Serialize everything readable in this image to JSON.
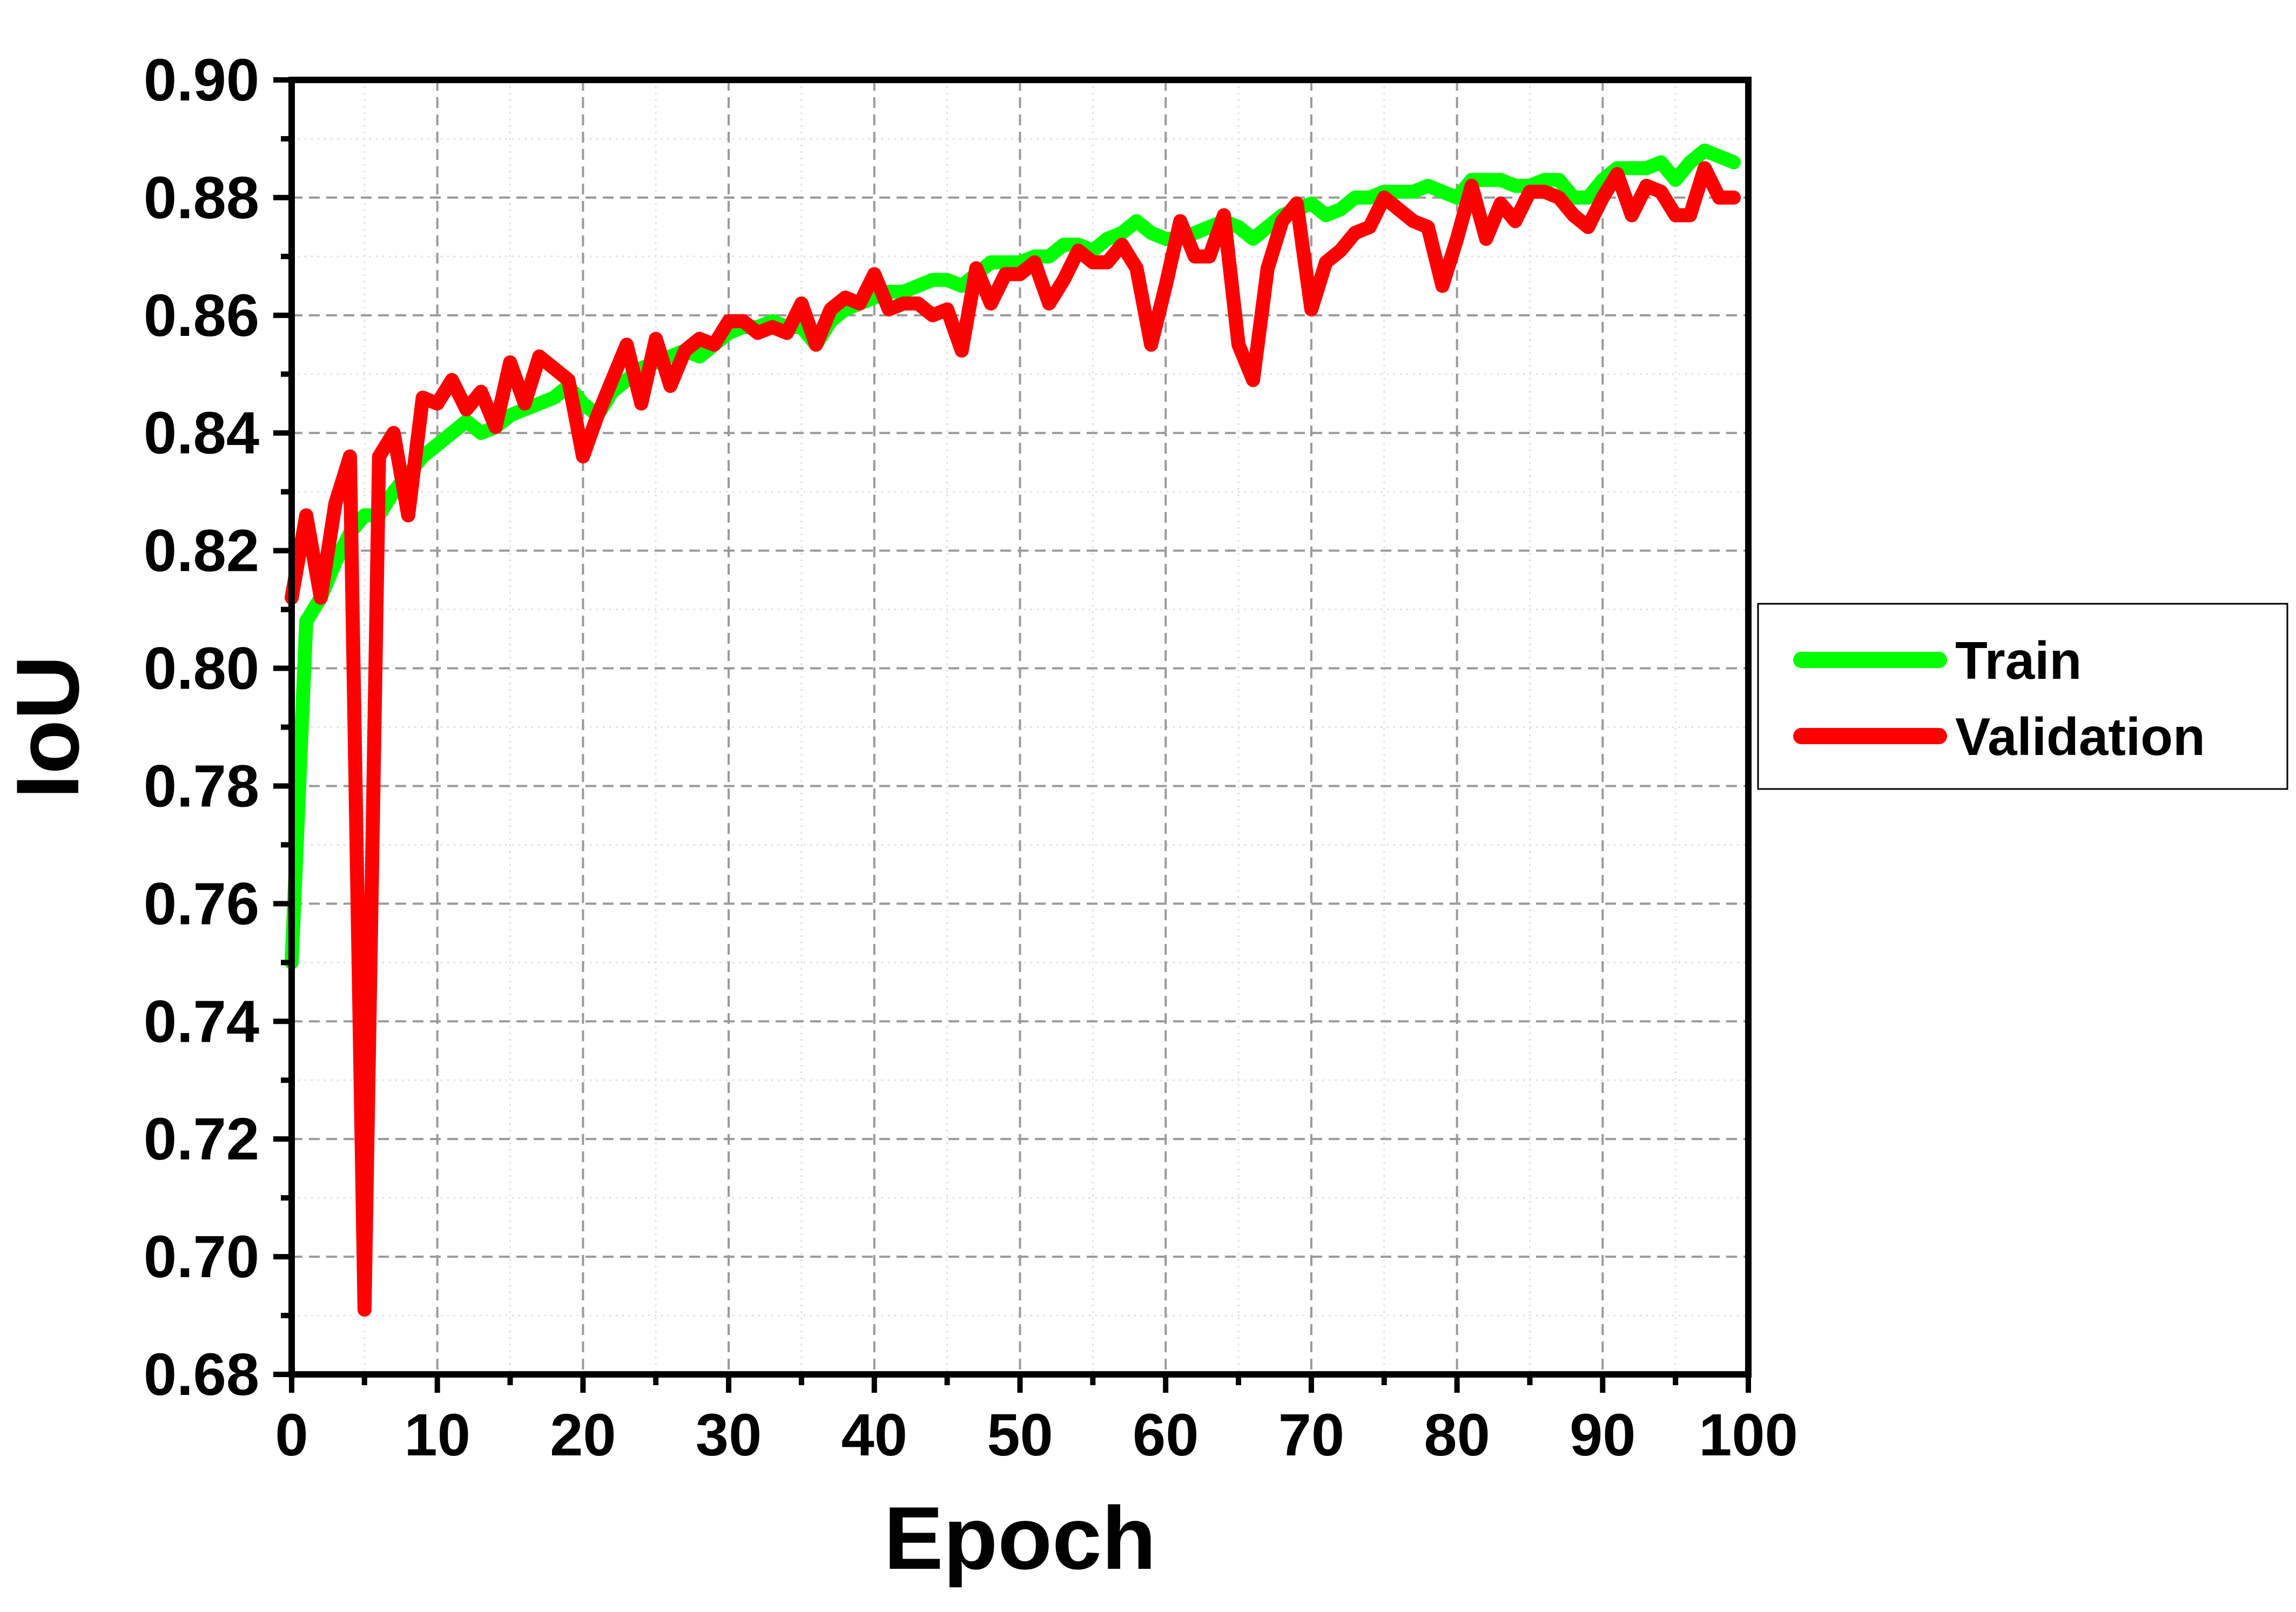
{
  "chart_data": {
    "type": "line",
    "xlabel": "Epoch",
    "ylabel": "IoU",
    "xlim": [
      0,
      100
    ],
    "ylim": [
      0.68,
      0.9
    ],
    "x_ticks": [
      0,
      10,
      20,
      30,
      40,
      50,
      60,
      70,
      80,
      90,
      100
    ],
    "x_tick_labels": [
      "0",
      "10",
      "20",
      "30",
      "40",
      "50",
      "60",
      "70",
      "80",
      "90",
      "100"
    ],
    "y_ticks": [
      0.68,
      0.7,
      0.72,
      0.74,
      0.76,
      0.78,
      0.8,
      0.82,
      0.84,
      0.86,
      0.88,
      0.9
    ],
    "y_tick_labels": [
      "0.68",
      "0.70",
      "0.72",
      "0.74",
      "0.76",
      "0.78",
      "0.80",
      "0.82",
      "0.84",
      "0.86",
      "0.88",
      "0.90"
    ],
    "grid": true,
    "legend_position": "right, outside plot area",
    "series": [
      {
        "name": "Train",
        "color": "#00ff00",
        "x": [
          0,
          1,
          2,
          3,
          4,
          5,
          6,
          7,
          8,
          9,
          10,
          11,
          12,
          13,
          14,
          15,
          16,
          17,
          18,
          19,
          20,
          21,
          22,
          23,
          24,
          25,
          26,
          27,
          28,
          29,
          30,
          31,
          32,
          33,
          34,
          35,
          36,
          37,
          38,
          39,
          40,
          41,
          42,
          43,
          44,
          45,
          46,
          47,
          48,
          49,
          50,
          51,
          52,
          53,
          54,
          55,
          56,
          57,
          58,
          59,
          60,
          61,
          62,
          63,
          64,
          65,
          66,
          67,
          68,
          69,
          70,
          71,
          72,
          73,
          74,
          75,
          76,
          77,
          78,
          79,
          80,
          81,
          82,
          83,
          84,
          85,
          86,
          87,
          88,
          89,
          90,
          91,
          92,
          93,
          94,
          95,
          96,
          97,
          98,
          99
        ],
        "values": [
          0.75,
          0.808,
          0.812,
          0.818,
          0.823,
          0.826,
          0.826,
          0.83,
          0.833,
          0.836,
          0.838,
          0.84,
          0.842,
          0.84,
          0.841,
          0.843,
          0.844,
          0.845,
          0.846,
          0.848,
          0.845,
          0.843,
          0.847,
          0.849,
          0.851,
          0.852,
          0.853,
          0.854,
          0.853,
          0.855,
          0.857,
          0.858,
          0.858,
          0.859,
          0.858,
          0.858,
          0.855,
          0.859,
          0.861,
          0.862,
          0.863,
          0.864,
          0.864,
          0.865,
          0.866,
          0.866,
          0.865,
          0.867,
          0.869,
          0.869,
          0.869,
          0.87,
          0.87,
          0.872,
          0.872,
          0.871,
          0.873,
          0.874,
          0.876,
          0.874,
          0.873,
          0.873,
          0.874,
          0.875,
          0.876,
          0.875,
          0.873,
          0.875,
          0.877,
          0.878,
          0.879,
          0.877,
          0.878,
          0.88,
          0.88,
          0.881,
          0.881,
          0.881,
          0.882,
          0.881,
          0.88,
          0.883,
          0.883,
          0.883,
          0.882,
          0.882,
          0.883,
          0.883,
          0.88,
          0.88,
          0.883,
          0.885,
          0.885,
          0.885,
          0.886,
          0.883,
          0.886,
          0.888,
          0.887,
          0.886
        ]
      },
      {
        "name": "Validation",
        "color": "#ff0000",
        "x": [
          0,
          1,
          2,
          3,
          4,
          5,
          6,
          7,
          8,
          9,
          10,
          11,
          12,
          13,
          14,
          15,
          16,
          17,
          18,
          19,
          20,
          21,
          22,
          23,
          24,
          25,
          26,
          27,
          28,
          29,
          30,
          31,
          32,
          33,
          34,
          35,
          36,
          37,
          38,
          39,
          40,
          41,
          42,
          43,
          44,
          45,
          46,
          47,
          48,
          49,
          50,
          51,
          52,
          53,
          54,
          55,
          56,
          57,
          58,
          59,
          60,
          61,
          62,
          63,
          64,
          65,
          66,
          67,
          68,
          69,
          70,
          71,
          72,
          73,
          74,
          75,
          76,
          77,
          78,
          79,
          80,
          81,
          82,
          83,
          84,
          85,
          86,
          87,
          88,
          89,
          90,
          91,
          92,
          93,
          94,
          95,
          96,
          97,
          98,
          99
        ],
        "values": [
          0.812,
          0.826,
          0.812,
          0.828,
          0.836,
          0.691,
          0.836,
          0.84,
          0.826,
          0.846,
          0.845,
          0.849,
          0.844,
          0.847,
          0.841,
          0.852,
          0.845,
          0.853,
          0.851,
          0.849,
          0.836,
          0.843,
          0.849,
          0.855,
          0.845,
          0.856,
          0.848,
          0.854,
          0.856,
          0.855,
          0.859,
          0.859,
          0.857,
          0.858,
          0.857,
          0.862,
          0.855,
          0.861,
          0.863,
          0.862,
          0.867,
          0.861,
          0.862,
          0.862,
          0.86,
          0.861,
          0.854,
          0.868,
          0.862,
          0.867,
          0.867,
          0.869,
          0.862,
          0.866,
          0.871,
          0.869,
          0.869,
          0.872,
          0.868,
          0.855,
          0.865,
          0.876,
          0.87,
          0.87,
          0.877,
          0.855,
          0.849,
          0.868,
          0.876,
          0.879,
          0.861,
          0.869,
          0.871,
          0.874,
          0.875,
          0.88,
          0.878,
          0.876,
          0.875,
          0.865,
          0.873,
          0.882,
          0.873,
          0.879,
          0.876,
          0.881,
          0.881,
          0.88,
          0.877,
          0.875,
          0.88,
          0.884,
          0.877,
          0.882,
          0.881,
          0.877,
          0.877,
          0.885,
          0.88,
          0.88
        ]
      }
    ]
  }
}
